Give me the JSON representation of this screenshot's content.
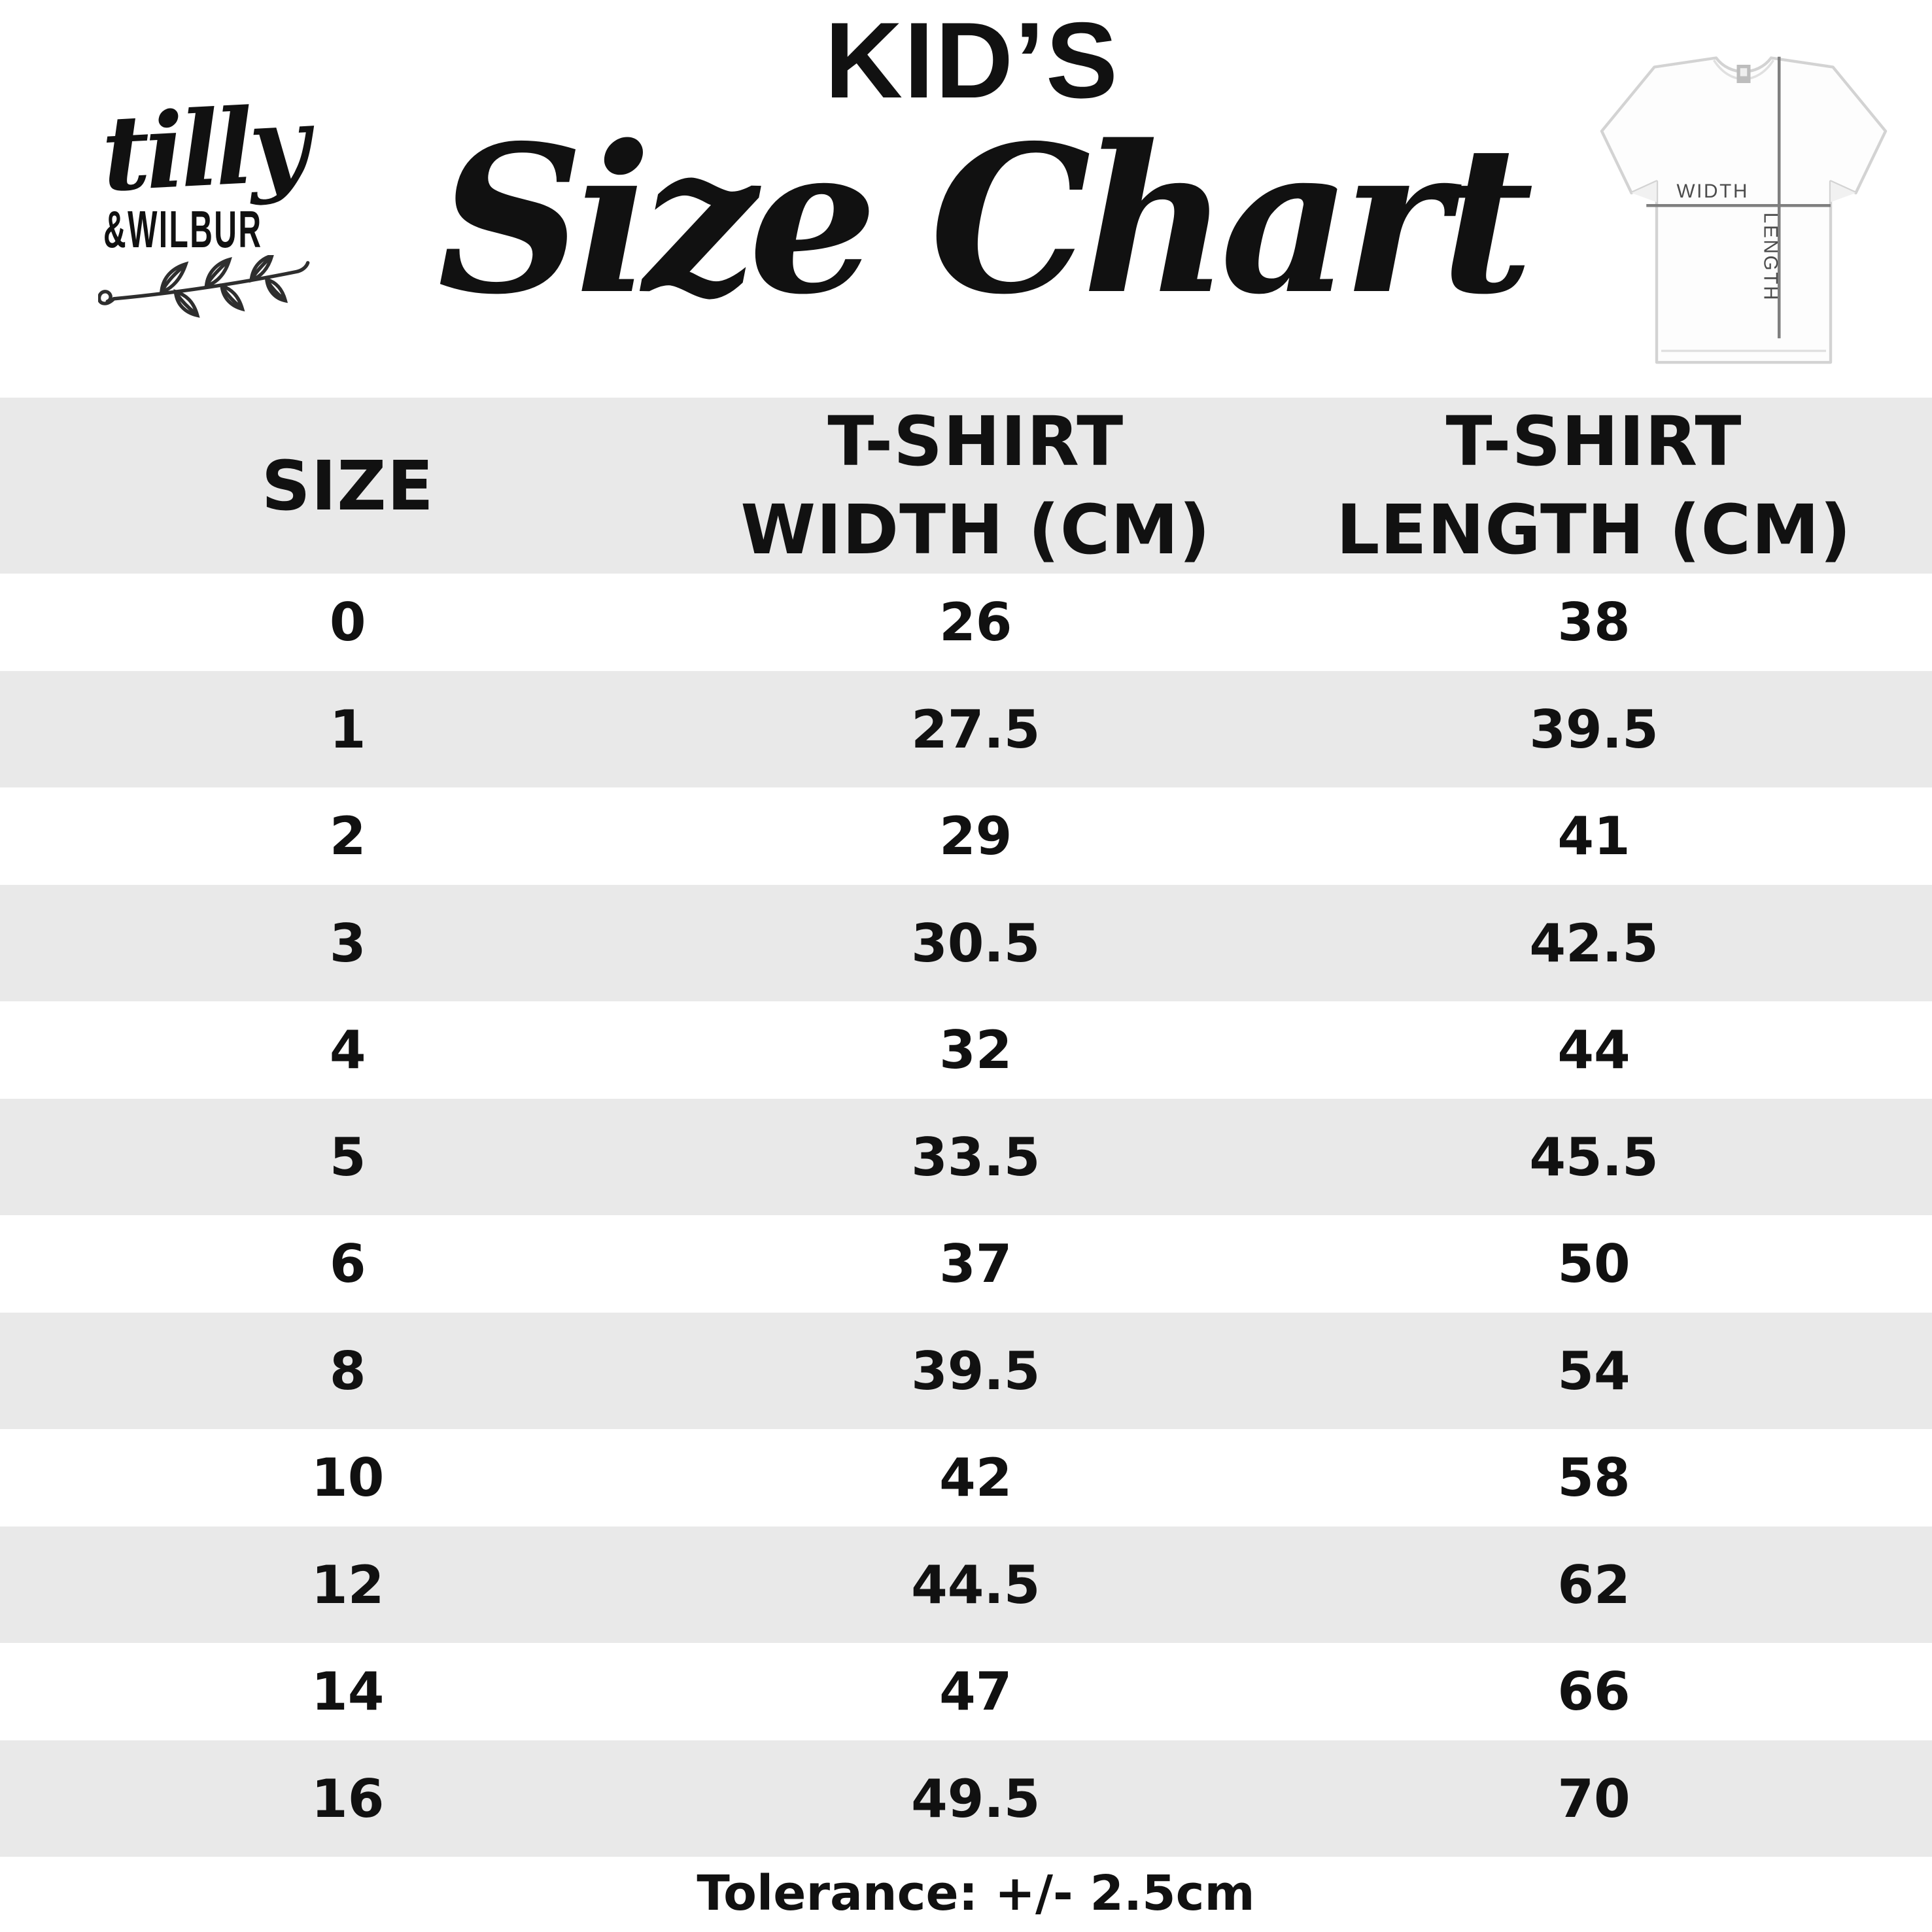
{
  "brand": {
    "script": "tilly",
    "caps": "&WILBUR"
  },
  "title": {
    "kicker": "KID’S",
    "main": "Size Chart"
  },
  "tshirt_diagram": {
    "width_label": "WIDTH",
    "length_label": "LENGTH"
  },
  "table": {
    "columns": [
      "SIZE",
      "T-SHIRT\nWIDTH (CM)",
      "T-SHIRT\nLENGTH (CM)"
    ],
    "rows": [
      [
        "0",
        "26",
        "38"
      ],
      [
        "1",
        "27.5",
        "39.5"
      ],
      [
        "2",
        "29",
        "41"
      ],
      [
        "3",
        "30.5",
        "42.5"
      ],
      [
        "4",
        "32",
        "44"
      ],
      [
        "5",
        "33.5",
        "45.5"
      ],
      [
        "6",
        "37",
        "50"
      ],
      [
        "8",
        "39.5",
        "54"
      ],
      [
        "10",
        "42",
        "58"
      ],
      [
        "12",
        "44.5",
        "62"
      ],
      [
        "14",
        "47",
        "66"
      ],
      [
        "16",
        "49.5",
        "70"
      ]
    ]
  },
  "footer": {
    "tolerance": "Tolerance: +/- 2.5cm"
  },
  "colors": {
    "band": "#e9e9e9",
    "ink": "#111111",
    "measure_line": "#7f7f7f",
    "shirt_label": "#4c4c4c"
  }
}
